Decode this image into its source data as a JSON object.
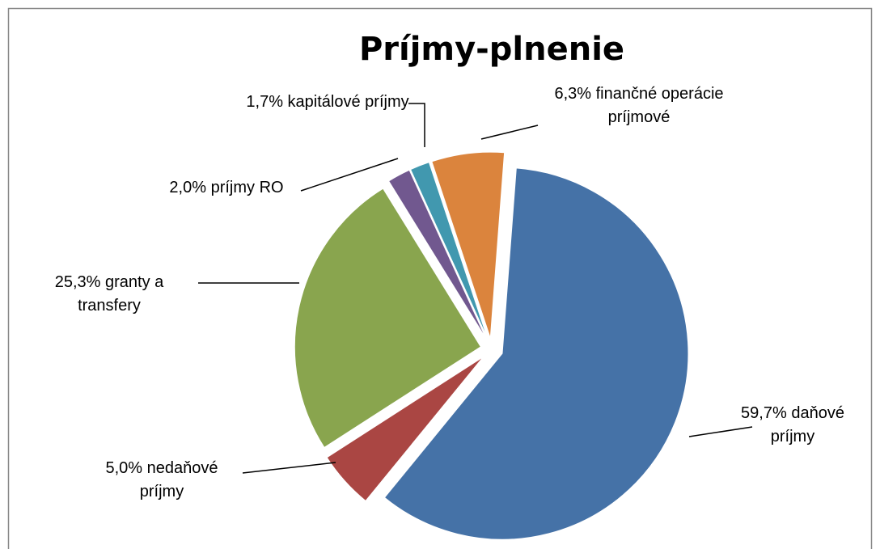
{
  "chart_data": {
    "type": "pie",
    "title": "Príjmy-plnenie",
    "categories": [
      "daňové príjmy",
      "nedaňové príjmy",
      "granty a transfery",
      "príjmy RO",
      "kapitálové príjmy",
      "finančné operácie príjmové"
    ],
    "values": [
      59.7,
      5.0,
      25.3,
      2.0,
      1.7,
      6.3
    ],
    "value_labels": [
      "59,7%",
      "5,0%",
      "25,3%",
      "2,0%",
      "1,7%",
      "6,3%"
    ],
    "colors": [
      "#4572a7",
      "#aa4643",
      "#89a54e",
      "#71588f",
      "#4198af",
      "#db843d"
    ]
  }
}
